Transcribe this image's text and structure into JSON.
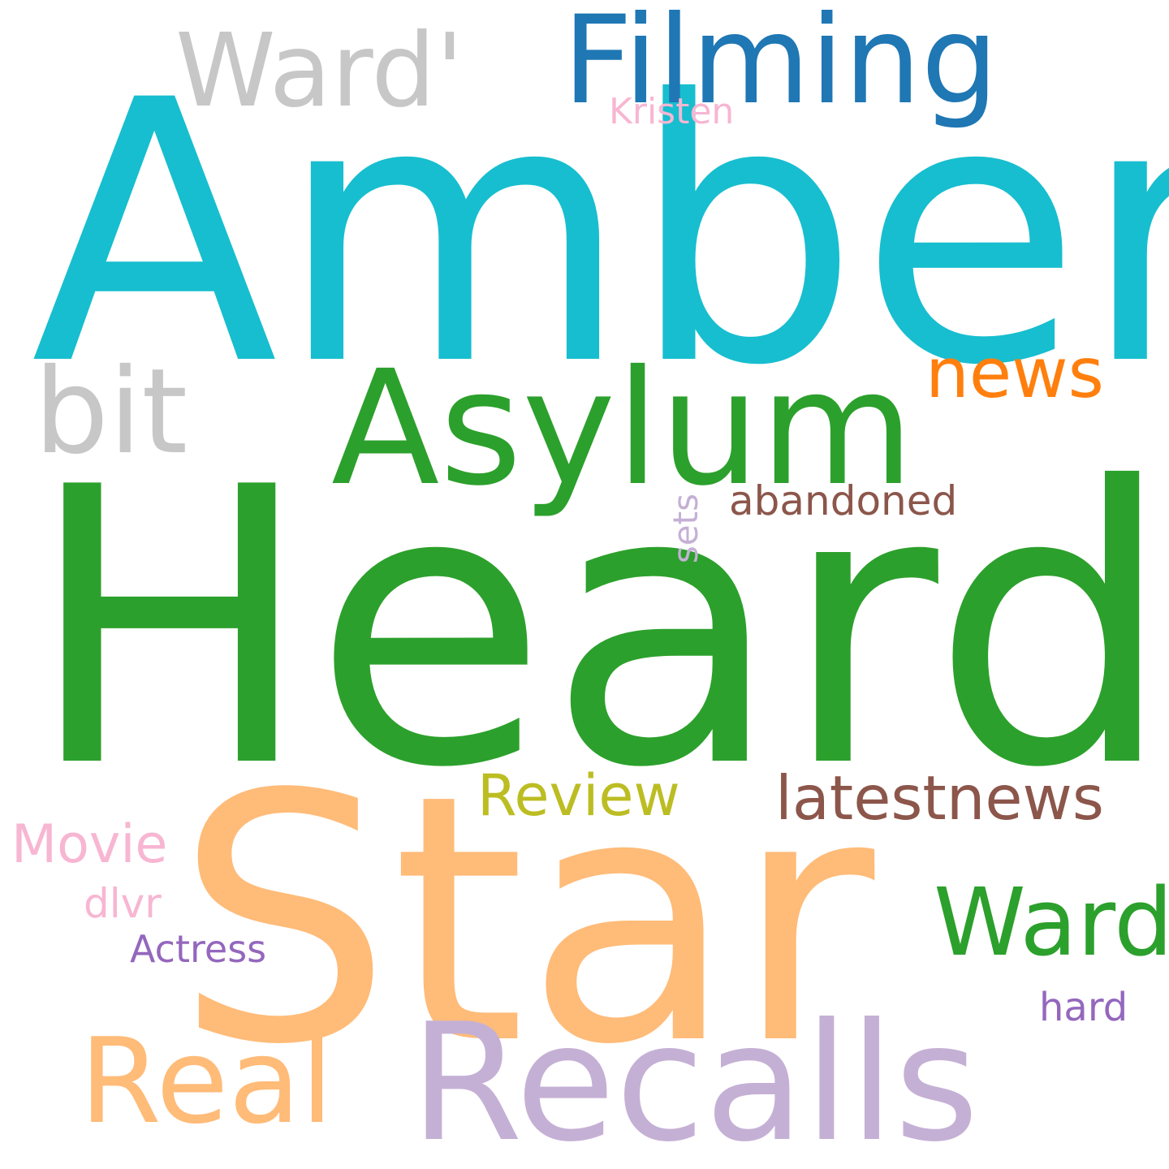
{
  "words": [
    {
      "text": "Amber",
      "color": "#17becf"
    },
    {
      "text": "Heard",
      "color": "#2ca02c"
    },
    {
      "text": "Star",
      "color": "#ffbb78"
    },
    {
      "text": "Filming",
      "color": "#1f77b4"
    },
    {
      "text": "Ward'",
      "color": "#c7c7c7"
    },
    {
      "text": "Kristen",
      "color": "#f7b6d2"
    },
    {
      "text": "bit",
      "color": "#c7c7c7"
    },
    {
      "text": "Asylum",
      "color": "#2ca02c"
    },
    {
      "text": "news",
      "color": "#ff7f0e"
    },
    {
      "text": "abandoned",
      "color": "#8c564b"
    },
    {
      "text": "sets",
      "color": "#c5b0d5"
    },
    {
      "text": "Review",
      "color": "#bcbd22"
    },
    {
      "text": "latestnews",
      "color": "#8c564b"
    },
    {
      "text": "Movie",
      "color": "#f7b6d2"
    },
    {
      "text": "dlvr",
      "color": "#f7b6d2"
    },
    {
      "text": "Actress",
      "color": "#9467bd"
    },
    {
      "text": "Ward",
      "color": "#2ca02c"
    },
    {
      "text": "hard",
      "color": "#9467bd"
    },
    {
      "text": "Real",
      "color": "#ffbb78"
    },
    {
      "text": "Recalls",
      "color": "#c5b0d5"
    }
  ]
}
